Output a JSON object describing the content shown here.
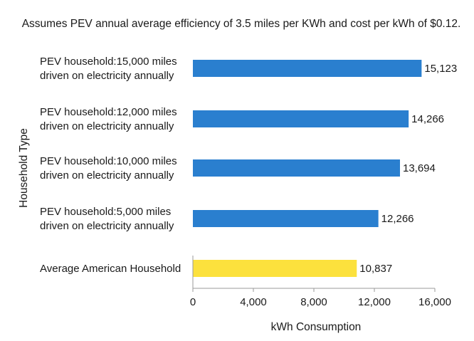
{
  "chart_data": {
    "type": "bar",
    "orientation": "horizontal",
    "subtitle": "Assumes PEV annual average efficiency of 3.5 miles per KWh and cost per kWh of $0.12.",
    "xlabel": "kWh Consumption",
    "ylabel": "Household Type",
    "xlim": [
      0,
      16000
    ],
    "x_ticks": [
      "0",
      "4,000",
      "8,000",
      "12,000",
      "16,000"
    ],
    "grid": false,
    "categories": [
      [
        "PEV household:15,000 miles",
        "driven on electricity annually"
      ],
      [
        "PEV household:12,000 miles",
        "driven on electricity annually"
      ],
      [
        "PEV household:10,000 miles",
        "driven on electricity annually"
      ],
      [
        "PEV household:5,000 miles",
        "driven on electricity annually"
      ],
      [
        "Average American Household"
      ]
    ],
    "values": [
      15123,
      14266,
      13694,
      12266,
      10837
    ],
    "value_labels": [
      "15,123",
      "14,266",
      "13,694",
      "12,266",
      "10,837"
    ],
    "bar_colors": [
      "#2a7fcf",
      "#2a7fcf",
      "#2a7fcf",
      "#2a7fcf",
      "#fce13d"
    ]
  }
}
